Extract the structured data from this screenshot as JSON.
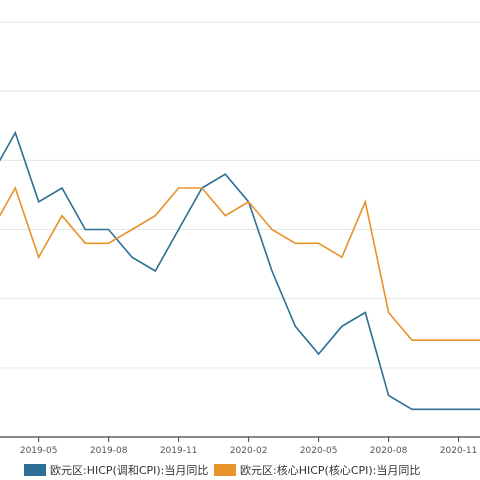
{
  "chart_data": {
    "type": "line",
    "x_ticks": [
      "2019-05",
      "2019-08",
      "2019-11",
      "2020-02",
      "2020-05",
      "2020-08",
      "2020-11"
    ],
    "x": [
      "2019-03",
      "2019-04",
      "2019-05",
      "2019-06",
      "2019-07",
      "2019-08",
      "2019-09",
      "2019-10",
      "2019-11",
      "2019-12",
      "2020-01",
      "2020-02",
      "2020-03",
      "2020-04",
      "2020-05",
      "2020-06",
      "2020-07",
      "2020-08",
      "2020-09",
      "2020-10",
      "2020-11",
      "2020-12"
    ],
    "ylim": [
      -0.5,
      2.5
    ],
    "y_gridlines": [
      -0.5,
      0.0,
      0.5,
      1.0,
      1.5,
      2.0,
      2.5
    ],
    "grid": "horizontal",
    "legend_position": "bottom",
    "series": [
      {
        "name": "欧元区:HICP(调和CPI):当月同比",
        "color": "#2e6f96",
        "values": [
          1.4,
          1.7,
          1.2,
          1.3,
          1.0,
          1.0,
          0.8,
          0.7,
          1.0,
          1.3,
          1.4,
          1.2,
          0.7,
          0.3,
          0.1,
          0.3,
          0.4,
          -0.2,
          -0.3,
          -0.3,
          -0.3,
          -0.3
        ]
      },
      {
        "name": "欧元区:核心HICP(核心CPI):当月同比",
        "color": "#e8922a",
        "values": [
          1.0,
          1.3,
          0.8,
          1.1,
          0.9,
          0.9,
          1.0,
          1.1,
          1.3,
          1.3,
          1.1,
          1.2,
          1.0,
          0.9,
          0.9,
          0.8,
          1.2,
          0.4,
          0.2,
          0.2,
          0.2,
          0.2
        ]
      }
    ]
  }
}
